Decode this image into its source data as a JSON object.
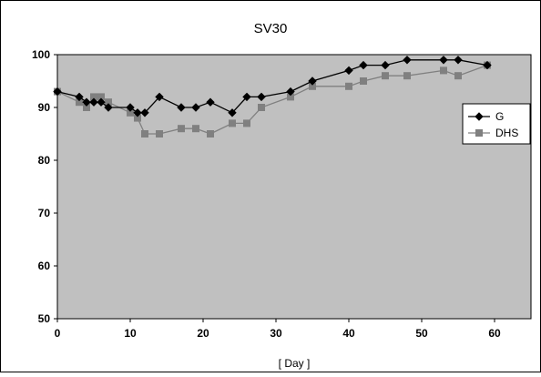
{
  "chart_data": {
    "type": "line",
    "title": "SV30",
    "xlabel": "[ Day ]",
    "ylabel": "",
    "xlim": [
      0,
      65
    ],
    "ylim": [
      50,
      100
    ],
    "x_ticks": [
      0,
      10,
      20,
      30,
      40,
      50,
      60
    ],
    "y_ticks": [
      50,
      60,
      70,
      80,
      90,
      100
    ],
    "grid": false,
    "legend_position": "right",
    "plot_background": "#c0c0c0",
    "series": [
      {
        "name": "G",
        "color": "#000000",
        "marker": "diamond",
        "points": [
          {
            "x": 0,
            "y": 93
          },
          {
            "x": 3,
            "y": 92
          },
          {
            "x": 4,
            "y": 91
          },
          {
            "x": 5,
            "y": 91
          },
          {
            "x": 6,
            "y": 91
          },
          {
            "x": 7,
            "y": 90
          },
          {
            "x": 10,
            "y": 90
          },
          {
            "x": 11,
            "y": 89
          },
          {
            "x": 12,
            "y": 89
          },
          {
            "x": 14,
            "y": 92
          },
          {
            "x": 17,
            "y": 90
          },
          {
            "x": 19,
            "y": 90
          },
          {
            "x": 21,
            "y": 91
          },
          {
            "x": 24,
            "y": 89
          },
          {
            "x": 26,
            "y": 92
          },
          {
            "x": 28,
            "y": 92
          },
          {
            "x": 32,
            "y": 93
          },
          {
            "x": 35,
            "y": 95
          },
          {
            "x": 40,
            "y": 97
          },
          {
            "x": 42,
            "y": 98
          },
          {
            "x": 45,
            "y": 98
          },
          {
            "x": 48,
            "y": 99
          },
          {
            "x": 53,
            "y": 99
          },
          {
            "x": 55,
            "y": 99
          },
          {
            "x": 59,
            "y": 98
          }
        ]
      },
      {
        "name": "DHS",
        "color": "#808080",
        "marker": "square",
        "points": [
          {
            "x": 0,
            "y": 93
          },
          {
            "x": 3,
            "y": 91
          },
          {
            "x": 4,
            "y": 90
          },
          {
            "x": 5,
            "y": 92
          },
          {
            "x": 6,
            "y": 92
          },
          {
            "x": 7,
            "y": 91
          },
          {
            "x": 10,
            "y": 89
          },
          {
            "x": 11,
            "y": 88
          },
          {
            "x": 12,
            "y": 85
          },
          {
            "x": 14,
            "y": 85
          },
          {
            "x": 17,
            "y": 86
          },
          {
            "x": 19,
            "y": 86
          },
          {
            "x": 21,
            "y": 85
          },
          {
            "x": 24,
            "y": 87
          },
          {
            "x": 26,
            "y": 87
          },
          {
            "x": 28,
            "y": 90
          },
          {
            "x": 32,
            "y": 92
          },
          {
            "x": 35,
            "y": 94
          },
          {
            "x": 40,
            "y": 94
          },
          {
            "x": 42,
            "y": 95
          },
          {
            "x": 45,
            "y": 96
          },
          {
            "x": 48,
            "y": 96
          },
          {
            "x": 53,
            "y": 97
          },
          {
            "x": 55,
            "y": 96
          },
          {
            "x": 59,
            "y": 98
          }
        ]
      }
    ]
  }
}
